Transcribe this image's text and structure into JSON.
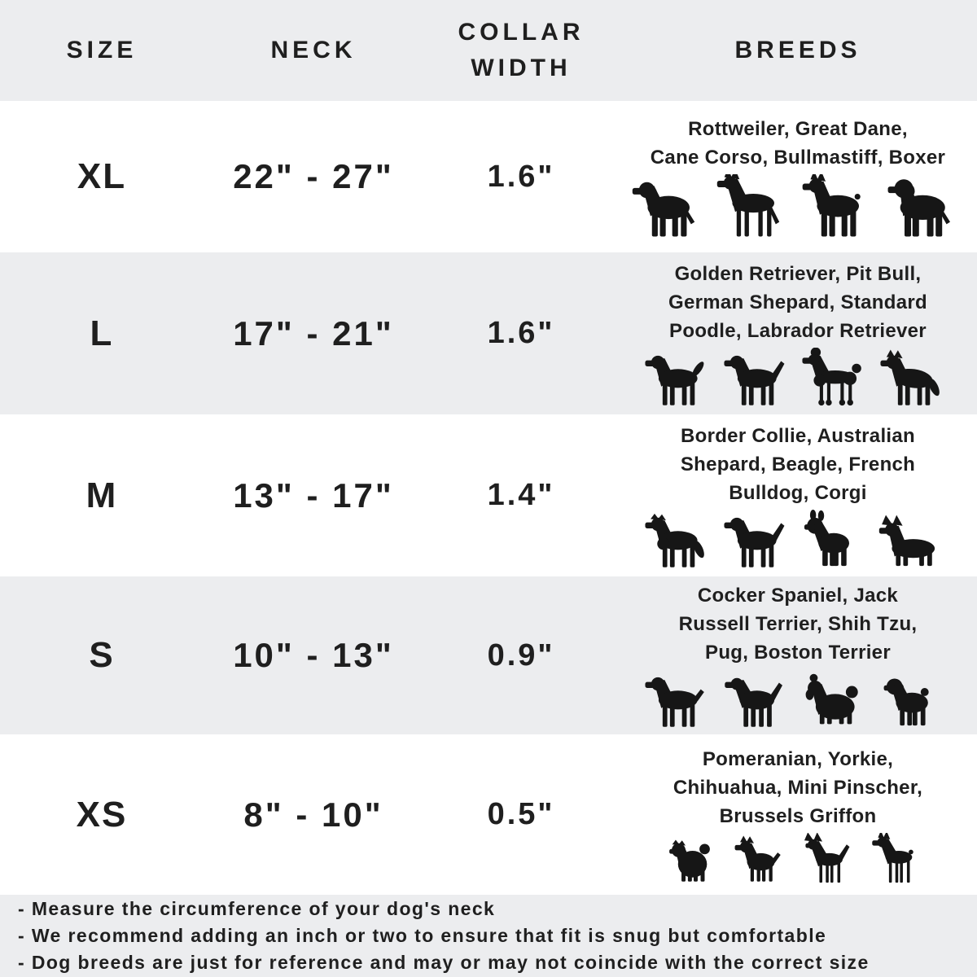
{
  "colors": {
    "row_alt": "#ECEDEF",
    "text": "#1F1F1F",
    "icon_color": "#161616",
    "background": "#FFFFFF"
  },
  "header": {
    "size": "SIZE",
    "neck": "NECK",
    "collar_width": "COLLAR\nWIDTH",
    "breeds": "BREEDS"
  },
  "rows": [
    {
      "size": "XL",
      "neck": "22\" - 27\"",
      "collar_width": "1.6\"",
      "breeds": "Rottweiler, Great Dane,\nCane Corso, Bullmastiff, Boxer",
      "icons": [
        "rottweiler-icon",
        "great-dane-icon",
        "cane-corso-icon",
        "bullmastiff-icon"
      ]
    },
    {
      "size": "L",
      "neck": "17\" - 21\"",
      "collar_width": "1.6\"",
      "breeds": "Golden Retriever, Pit Bull,\nGerman Shepard, Standard\nPoodle, Labrador Retriever",
      "icons": [
        "golden-retriever-icon",
        "labrador-retriever-icon",
        "poodle-icon",
        "german-shepherd-icon"
      ]
    },
    {
      "size": "M",
      "neck": "13\" - 17\"",
      "collar_width": "1.4\"",
      "breeds": "Border Collie, Australian\nShepard, Beagle, French\nBulldog, Corgi",
      "icons": [
        "border-collie-icon",
        "beagle-icon",
        "french-bulldog-icon",
        "corgi-icon"
      ]
    },
    {
      "size": "S",
      "neck": "10\" - 13\"",
      "collar_width": "0.9\"",
      "breeds": "Cocker Spaniel, Jack\nRussell Terrier, Shih Tzu,\nPug, Boston Terrier",
      "icons": [
        "cocker-spaniel-icon",
        "jack-russell-terrier-icon",
        "shih-tzu-icon",
        "pug-icon"
      ]
    },
    {
      "size": "XS",
      "neck": "8\" - 10\"",
      "collar_width": "0.5\"",
      "breeds": "Pomeranian, Yorkie,\nChihuahua, Mini Pinscher,\nBrussels Griffon",
      "icons": [
        "pomeranian-icon",
        "yorkie-icon",
        "chihuahua-icon",
        "mini-pinscher-icon"
      ]
    }
  ],
  "notes": [
    "- Measure the circumference of your dog's neck",
    "- We recommend adding an inch or two to ensure that fit is snug but comfortable",
    "- Dog breeds are just for reference and may or may not coincide with the correct size"
  ],
  "chart_data": {
    "type": "table",
    "columns": [
      "SIZE",
      "NECK",
      "COLLAR WIDTH",
      "BREEDS"
    ],
    "rows": [
      [
        "XL",
        "22\" - 27\"",
        "1.6\"",
        "Rottweiler, Great Dane, Cane Corso, Bullmastiff, Boxer"
      ],
      [
        "L",
        "17\" - 21\"",
        "1.6\"",
        "Golden Retriever, Pit Bull, German Shepard, Standard Poodle, Labrador Retriever"
      ],
      [
        "M",
        "13\" - 17\"",
        "1.4\"",
        "Border Collie, Australian Shepard, Beagle, French Bulldog, Corgi"
      ],
      [
        "S",
        "10\" - 13\"",
        "0.9\"",
        "Cocker Spaniel, Jack Russell Terrier, Shih Tzu, Pug, Boston Terrier"
      ],
      [
        "XS",
        "8\" - 10\"",
        "0.5\"",
        "Pomeranian, Yorkie, Chihuahua, Mini Pinscher, Brussels Griffon"
      ]
    ],
    "notes": [
      "Measure the circumference of your dog's neck",
      "We recommend adding an inch or two to ensure that fit is snug but comfortable",
      "Dog breeds are just for reference and may or may not coincide with the correct size"
    ]
  }
}
